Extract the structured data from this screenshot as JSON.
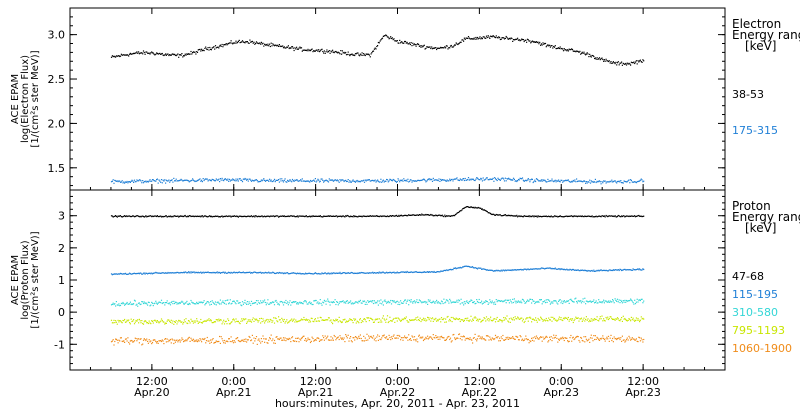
{
  "chart_data": [
    {
      "type": "scatter",
      "panel": "electron",
      "ylabel": [
        "ACE EPAM",
        "log(Electron Flux)",
        "[1/(cm²s ster MeV)]"
      ],
      "ylim": [
        1.25,
        3.3
      ],
      "yticks": [
        1.5,
        2.0,
        2.5,
        3.0
      ],
      "ytick_labels": [
        "1.5",
        "2.0",
        "2.5",
        "3.0"
      ],
      "legend_title": [
        "Electron",
        "Energy ranges",
        "[keV]"
      ],
      "series": [
        {
          "name": "38-53",
          "color": "#000000",
          "x": [
            0,
            2,
            4,
            6,
            8,
            10,
            12,
            14,
            16,
            18,
            20,
            22,
            24,
            26,
            28,
            30,
            32,
            34,
            36,
            38,
            40,
            42,
            44,
            46,
            48,
            50,
            52,
            54,
            56,
            58,
            60,
            62,
            64,
            66,
            68,
            70,
            72,
            74,
            76,
            78
          ],
          "y": [
            2.75,
            2.78,
            2.8,
            2.8,
            2.78,
            2.77,
            2.8,
            2.85,
            2.88,
            2.92,
            2.93,
            2.9,
            2.88,
            2.86,
            2.84,
            2.83,
            2.82,
            2.8,
            2.78,
            2.78,
            3.0,
            2.93,
            2.9,
            2.87,
            2.85,
            2.88,
            2.96,
            2.97,
            2.98,
            2.96,
            2.95,
            2.93,
            2.88,
            2.85,
            2.82,
            2.78,
            2.72,
            2.68,
            2.68,
            2.72
          ]
        },
        {
          "name": "175-315",
          "color": "#1f7fd6",
          "x": [
            0,
            8,
            16,
            24,
            32,
            40,
            48,
            56,
            64,
            72,
            78
          ],
          "y": [
            1.35,
            1.36,
            1.37,
            1.36,
            1.36,
            1.36,
            1.37,
            1.38,
            1.36,
            1.35,
            1.36
          ]
        }
      ]
    },
    {
      "type": "scatter",
      "panel": "proton",
      "ylabel": [
        "ACE EPAM",
        "log(Proton Flux)",
        "[1/(cm²s ster MeV)]"
      ],
      "ylim": [
        -1.8,
        3.8
      ],
      "yticks": [
        -1,
        0,
        1,
        2,
        3
      ],
      "ytick_labels": [
        "-1",
        "0",
        "1",
        "2",
        "3"
      ],
      "legend_title": [
        "Proton",
        "Energy ranges",
        "[keV]"
      ],
      "series": [
        {
          "name": "47-68",
          "color": "#000000",
          "x": [
            0,
            10,
            20,
            30,
            40,
            46,
            50,
            52,
            54,
            56,
            60,
            70,
            78
          ],
          "y": [
            3.0,
            3.0,
            3.0,
            3.0,
            3.0,
            3.05,
            3.0,
            3.3,
            3.25,
            3.05,
            3.0,
            3.0,
            3.0
          ]
        },
        {
          "name": "115-195",
          "color": "#1f7fd6",
          "x": [
            0,
            10,
            20,
            30,
            40,
            48,
            52,
            56,
            64,
            70,
            78
          ],
          "y": [
            1.2,
            1.25,
            1.25,
            1.22,
            1.25,
            1.27,
            1.45,
            1.3,
            1.38,
            1.3,
            1.35
          ]
        },
        {
          "name": "310-580",
          "color": "#33d6d6",
          "x": [
            0,
            20,
            40,
            60,
            78
          ],
          "y": [
            0.28,
            0.32,
            0.33,
            0.35,
            0.36
          ]
        },
        {
          "name": "795-1193",
          "color": "#c8e600",
          "x": [
            0,
            20,
            40,
            60,
            78
          ],
          "y": [
            -0.28,
            -0.25,
            -0.22,
            -0.2,
            -0.2
          ]
        },
        {
          "name": "1060-1900",
          "color": "#f08c1a",
          "x": [
            0,
            20,
            40,
            60,
            78
          ],
          "y": [
            -0.88,
            -0.85,
            -0.78,
            -0.8,
            -0.82
          ]
        }
      ]
    }
  ],
  "xaxis": {
    "xlim": [
      -6,
      90
    ],
    "ticks": [
      6,
      18,
      30,
      42,
      54,
      66,
      78,
      90
    ],
    "tick_time": [
      "12:00",
      "0:00",
      "12:00",
      "0:00",
      "12:00",
      "0:00",
      "12:00"
    ],
    "tick_date": [
      "Apr.20",
      "Apr.21",
      "Apr.21",
      "Apr.22",
      "Apr.22",
      "Apr.23",
      "Apr.23"
    ],
    "label": "hours:minutes, Apr. 20, 2011 - Apr. 23, 2011"
  }
}
